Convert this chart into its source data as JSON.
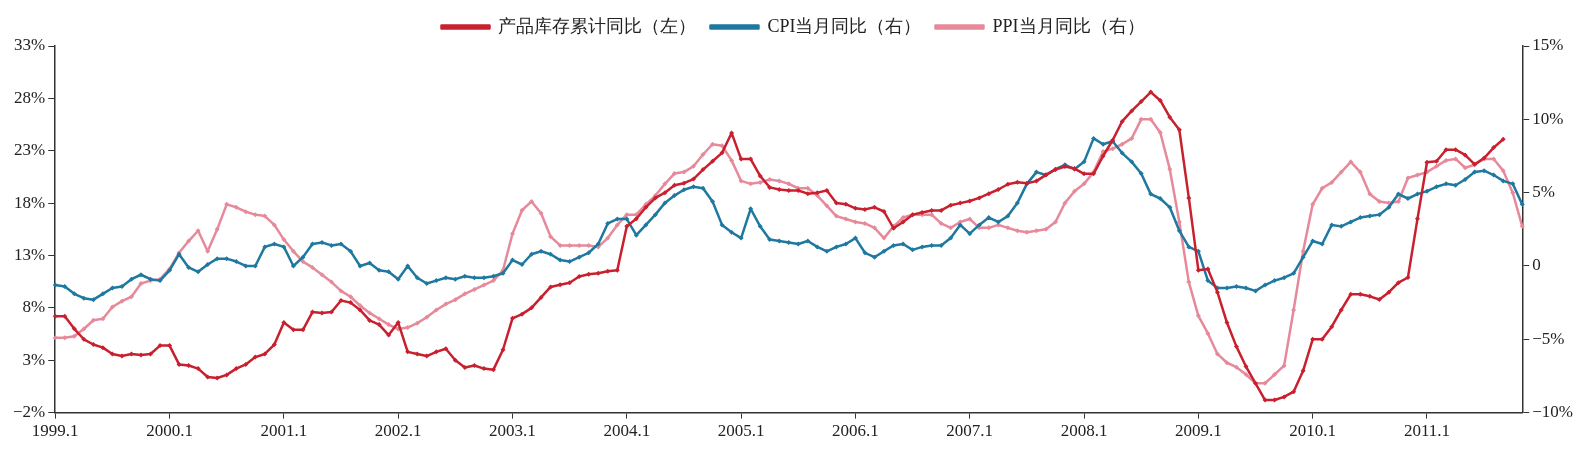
{
  "chart_data": {
    "type": "line",
    "legend": "top",
    "marker": "diamond",
    "categories": [
      "1999.1",
      null,
      null,
      null,
      null,
      null,
      null,
      null,
      null,
      null,
      null,
      null,
      "2000.1",
      null,
      null,
      null,
      null,
      null,
      null,
      null,
      null,
      null,
      null,
      null,
      "2001.1",
      null,
      null,
      null,
      null,
      null,
      null,
      null,
      null,
      null,
      null,
      null,
      "2002.1",
      null,
      null,
      null,
      null,
      null,
      null,
      null,
      null,
      null,
      null,
      null,
      "2003.1",
      null,
      null,
      null,
      null,
      null,
      null,
      null,
      null,
      null,
      null,
      null,
      "2004.1",
      null,
      null,
      null,
      null,
      null,
      null,
      null,
      null,
      null,
      null,
      null,
      "2005.1",
      null,
      null,
      null,
      null,
      null,
      null,
      null,
      null,
      null,
      null,
      null,
      "2006.1",
      null,
      null,
      null,
      null,
      null,
      null,
      null,
      null,
      null,
      null,
      null,
      "2007.1",
      null,
      null,
      null,
      null,
      null,
      null,
      null,
      null,
      null,
      null,
      null,
      "2008.1",
      null,
      null,
      null,
      null,
      null,
      null,
      null,
      null,
      null,
      null,
      null,
      "2009.1",
      null,
      null,
      null,
      null,
      null,
      null,
      null,
      null,
      null,
      null,
      null,
      "2010.1",
      null,
      null,
      null,
      null,
      null,
      null,
      null,
      null,
      null,
      null,
      null,
      "2011.1",
      null,
      null,
      null,
      null,
      null,
      null,
      null,
      null,
      null,
      null
    ],
    "ylim": [
      -2,
      33
    ],
    "yticks": [
      {
        "value": -2,
        "label": "−2%"
      },
      {
        "value": 3,
        "label": "3%"
      },
      {
        "value": 8,
        "label": "8%"
      },
      {
        "value": 13,
        "label": "13%"
      },
      {
        "value": 18,
        "label": "18%"
      },
      {
        "value": 23,
        "label": "23%"
      },
      {
        "value": 28,
        "label": "28%"
      },
      {
        "value": 33,
        "label": "33%"
      }
    ],
    "y2lim": [
      -10,
      15
    ],
    "y2ticks": [
      {
        "value": -10,
        "label": "−10%"
      },
      {
        "value": -5,
        "label": "−5%"
      },
      {
        "value": 0,
        "label": "0"
      },
      {
        "value": 5,
        "label": "5%"
      },
      {
        "value": 10,
        "label": "10%"
      },
      {
        "value": 15,
        "label": "15%"
      }
    ],
    "series": [
      {
        "name": "产品库存累计同比（左）",
        "color": "#c8202f",
        "values": [
          7.2,
          7.2,
          6.0,
          5.0,
          4.5,
          4.2,
          3.6,
          3.4,
          3.6,
          3.5,
          3.6,
          4.4,
          4.4,
          2.6,
          2.5,
          2.2,
          1.4,
          1.3,
          1.6,
          2.2,
          2.6,
          3.3,
          3.6,
          4.5,
          6.6,
          5.9,
          5.9,
          7.6,
          7.5,
          7.6,
          8.7,
          8.5,
          7.8,
          6.8,
          6.4,
          5.4,
          6.6,
          3.8,
          3.6,
          3.4,
          3.8,
          4.1,
          3.0,
          2.3,
          2.5,
          2.2,
          2.1,
          4.0,
          7.0,
          7.4,
          8.0,
          9.0,
          10.0,
          10.2,
          10.4,
          11.0,
          11.2,
          11.3,
          11.5,
          11.6,
          15.8,
          16.5,
          17.6,
          18.5,
          19.0,
          19.7,
          19.9,
          20.3,
          21.2,
          22.0,
          22.8,
          24.7,
          22.2,
          22.2,
          20.6,
          19.5,
          19.3,
          19.2,
          19.2,
          18.9,
          19.0,
          19.2,
          18.0,
          17.9,
          17.5,
          17.4,
          17.6,
          17.2,
          15.6,
          16.2,
          16.9,
          17.1,
          17.3,
          17.3,
          17.8,
          18.0,
          18.2,
          18.5,
          18.9,
          19.3,
          19.8,
          20.0,
          19.9,
          20.1,
          20.7,
          21.2,
          21.5,
          21.3,
          20.8,
          20.8,
          22.5,
          24.0,
          25.8,
          26.8,
          27.7,
          28.6,
          27.8,
          26.2,
          25.0,
          18.5,
          11.6,
          11.7,
          9.5,
          6.6,
          4.3,
          2.4,
          0.8,
          -0.8,
          -0.8,
          -0.5,
          0.0,
          2.0,
          5.0,
          5.0,
          6.2,
          7.8,
          9.3,
          9.3,
          9.1,
          8.8,
          9.5,
          10.4,
          10.9,
          16.5,
          21.9,
          22.0,
          23.1,
          23.1,
          22.6,
          21.7,
          22.3,
          23.3,
          24.1,
          null,
          null
        ]
      },
      {
        "name": "CPI当月同比（右）",
        "color": "#1f78a0",
        "axis": "y2",
        "values": [
          -1.3,
          -1.4,
          -1.9,
          -2.2,
          -2.3,
          -1.9,
          -1.5,
          -1.4,
          -0.9,
          -0.6,
          -0.9,
          -1.0,
          -0.3,
          0.8,
          -0.1,
          -0.4,
          0.1,
          0.5,
          0.5,
          0.3,
          0,
          0,
          1.3,
          1.5,
          1.3,
          0,
          0.6,
          1.5,
          1.6,
          1.4,
          1.5,
          1.0,
          0,
          0.2,
          -0.3,
          -0.4,
          -0.9,
          0,
          -0.8,
          -1.2,
          -1.0,
          -0.8,
          -0.9,
          -0.7,
          -0.8,
          -0.8,
          -0.7,
          -0.5,
          0.4,
          0.1,
          0.8,
          1.0,
          0.8,
          0.4,
          0.3,
          0.6,
          0.9,
          1.5,
          2.9,
          3.2,
          3.2,
          2.1,
          2.8,
          3.5,
          4.3,
          4.8,
          5.2,
          5.4,
          5.3,
          4.4,
          2.8,
          2.3,
          1.9,
          3.9,
          2.7,
          1.8,
          1.7,
          1.6,
          1.5,
          1.7,
          1.3,
          1.0,
          1.3,
          1.5,
          1.9,
          0.9,
          0.6,
          1.0,
          1.4,
          1.5,
          1.1,
          1.3,
          1.4,
          1.4,
          1.9,
          2.8,
          2.2,
          2.8,
          3.3,
          3.0,
          3.4,
          4.3,
          5.6,
          6.4,
          6.2,
          6.6,
          6.9,
          6.6,
          7.1,
          8.7,
          8.3,
          8.5,
          7.7,
          7.1,
          6.3,
          4.9,
          4.6,
          4.0,
          2.4,
          1.3,
          1.0,
          -1.0,
          -1.5,
          -1.5,
          -1.4,
          -1.5,
          -1.7,
          -1.3,
          -1.0,
          -0.8,
          -0.5,
          0.6,
          1.7,
          1.5,
          2.8,
          2.7,
          3.0,
          3.3,
          3.4,
          3.5,
          4.0,
          4.9,
          4.6,
          4.9,
          5.1,
          5.4,
          5.6,
          5.5,
          5.9,
          6.4,
          6.5,
          6.2,
          5.8,
          5.6,
          4.2
        ]
      },
      {
        "name": "PPI当月同比（右）",
        "color": "#e68a9b",
        "axis": "y2",
        "values": [
          -4.9,
          -4.9,
          -4.8,
          -4.3,
          -3.7,
          -3.6,
          -2.8,
          -2.4,
          -2.1,
          -1.2,
          -1.0,
          -0.9,
          -0.2,
          0.9,
          1.7,
          2.4,
          1.0,
          2.5,
          4.2,
          4.0,
          3.7,
          3.5,
          3.4,
          2.8,
          1.8,
          1.0,
          0.3,
          -0.1,
          -0.6,
          -1.1,
          -1.7,
          -2.1,
          -2.7,
          -3.2,
          -3.6,
          -4.0,
          -4.3,
          -4.2,
          -3.9,
          -3.5,
          -3.0,
          -2.6,
          -2.3,
          -1.9,
          -1.6,
          -1.3,
          -1.0,
          -0.3,
          2.2,
          3.8,
          4.4,
          3.6,
          2.0,
          1.4,
          1.4,
          1.4,
          1.4,
          1.3,
          1.9,
          2.8,
          3.5,
          3.5,
          4.2,
          4.8,
          5.6,
          6.3,
          6.4,
          6.8,
          7.6,
          8.3,
          8.2,
          7.2,
          5.8,
          5.6,
          5.7,
          5.9,
          5.8,
          5.6,
          5.3,
          5.3,
          4.8,
          4.1,
          3.4,
          3.2,
          3.0,
          2.9,
          2.6,
          1.9,
          2.7,
          3.3,
          3.5,
          3.5,
          3.5,
          2.9,
          2.6,
          3.0,
          3.2,
          2.6,
          2.6,
          2.8,
          2.6,
          2.4,
          2.3,
          2.4,
          2.5,
          3.0,
          4.3,
          5.1,
          5.6,
          6.4,
          7.8,
          8.0,
          8.3,
          8.7,
          10.0,
          10.0,
          9.1,
          6.6,
          3.0,
          -1.1,
          -3.4,
          -4.6,
          -6.0,
          -6.6,
          -6.9,
          -7.4,
          -8.0,
          -8.0,
          -7.4,
          -6.8,
          -3.0,
          1.0,
          4.2,
          5.3,
          5.7,
          6.4,
          7.1,
          6.4,
          4.9,
          4.4,
          4.3,
          4.4,
          6.0,
          6.2,
          6.4,
          6.8,
          7.2,
          7.3,
          6.7,
          6.9,
          7.3,
          7.3,
          6.5,
          5.0,
          2.7
        ]
      }
    ]
  }
}
